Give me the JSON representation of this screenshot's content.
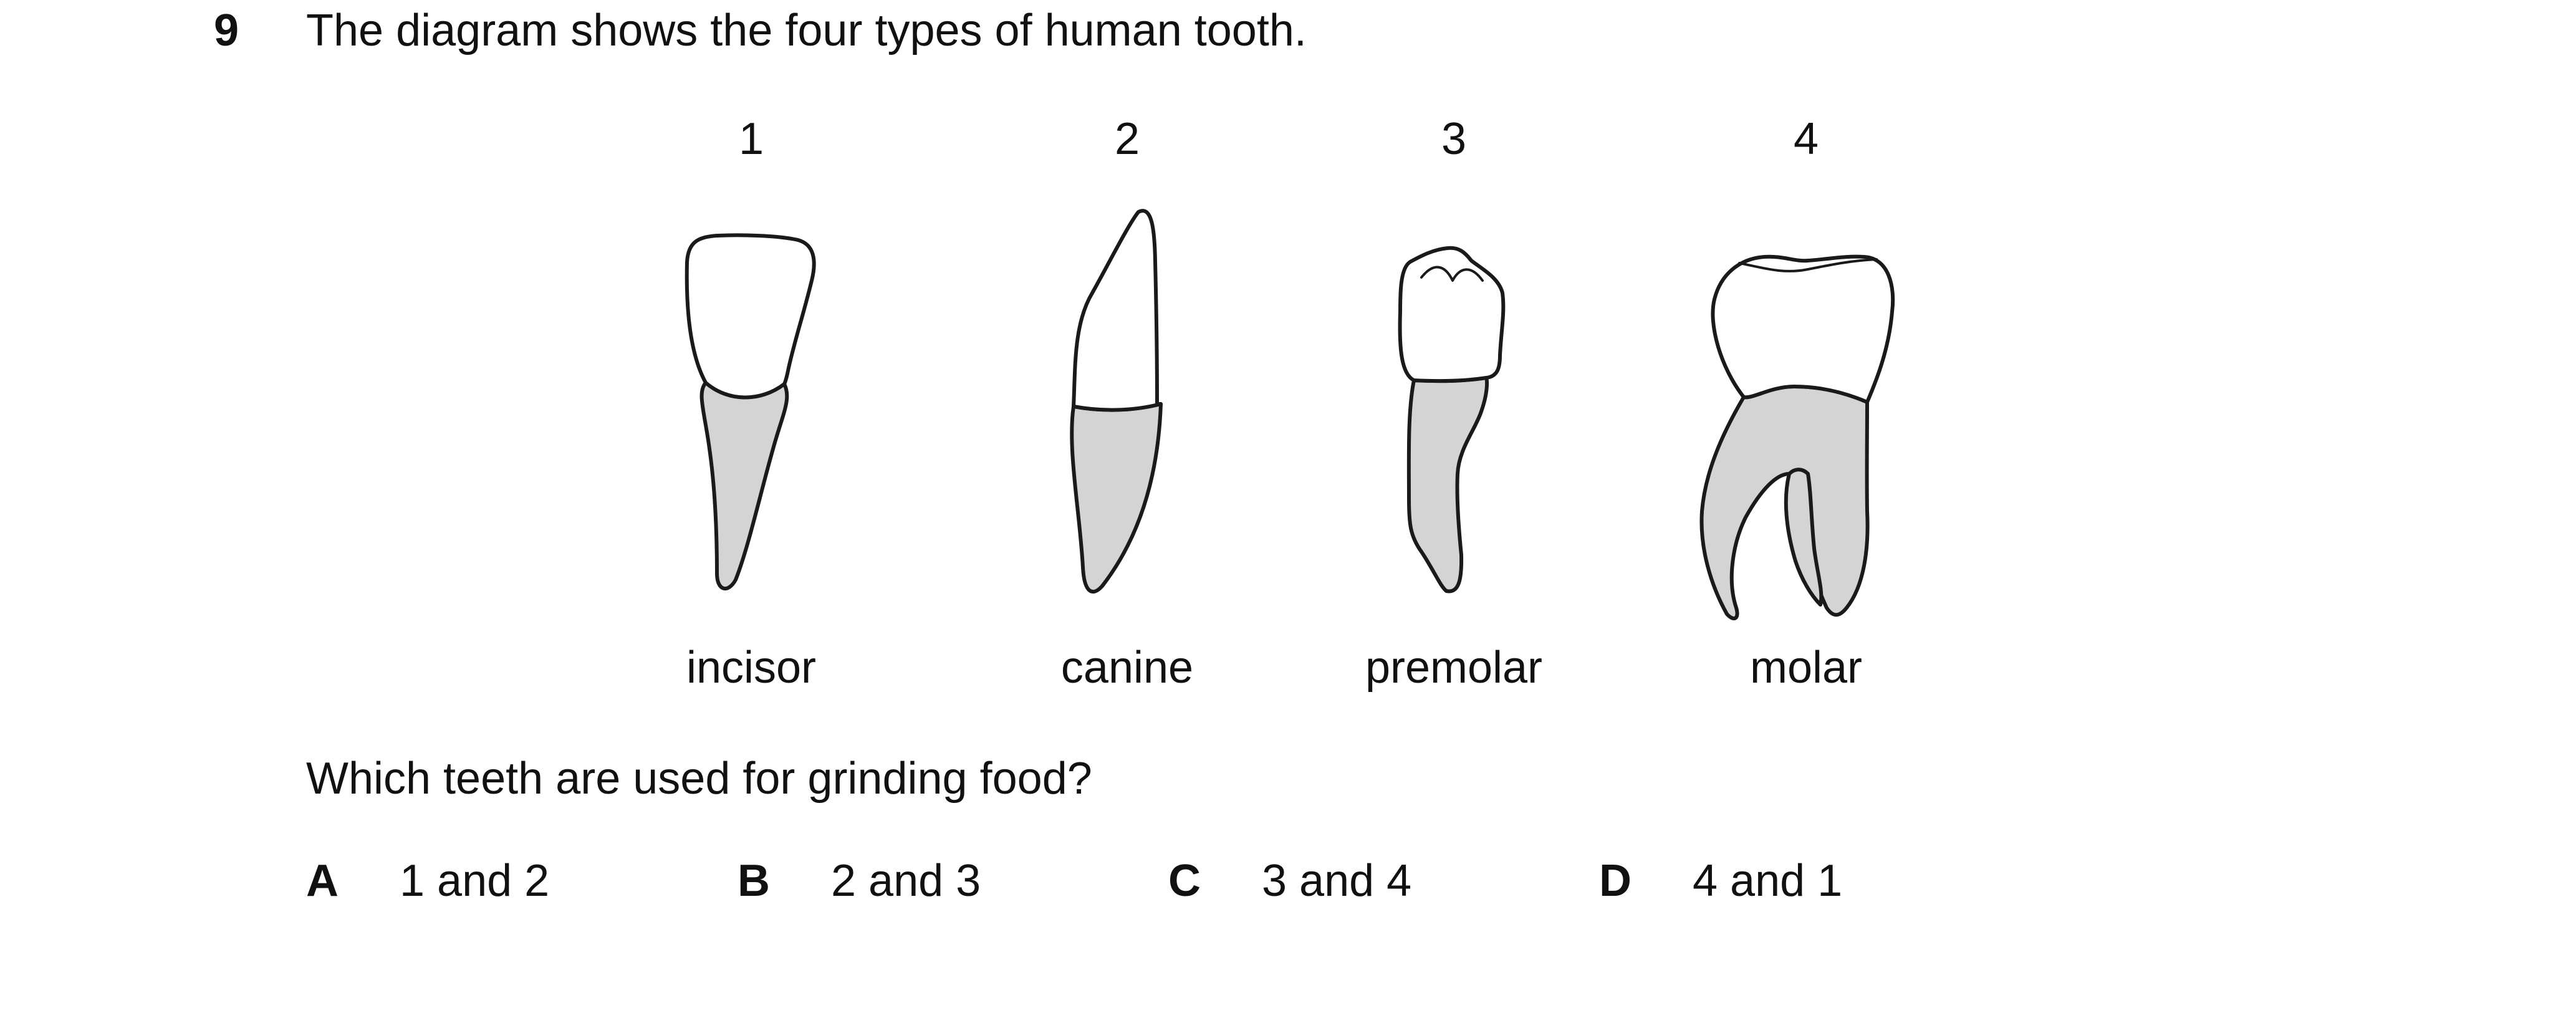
{
  "question": {
    "number": "9",
    "stem": "The diagram shows the four types of human tooth.",
    "prompt": "Which teeth are used for grinding food?"
  },
  "teeth": [
    {
      "number": "1",
      "name": "incisor"
    },
    {
      "number": "2",
      "name": "canine"
    },
    {
      "number": "3",
      "name": "premolar"
    },
    {
      "number": "4",
      "name": "molar"
    }
  ],
  "options": [
    {
      "letter": "A",
      "text": "1 and 2"
    },
    {
      "letter": "B",
      "text": "2 and 3"
    },
    {
      "letter": "C",
      "text": "3 and 4"
    },
    {
      "letter": "D",
      "text": "4 and 1"
    }
  ],
  "colors": {
    "outline": "#1a1a1a",
    "root_fill": "#d4d4d4",
    "crown_fill": "#ffffff"
  }
}
